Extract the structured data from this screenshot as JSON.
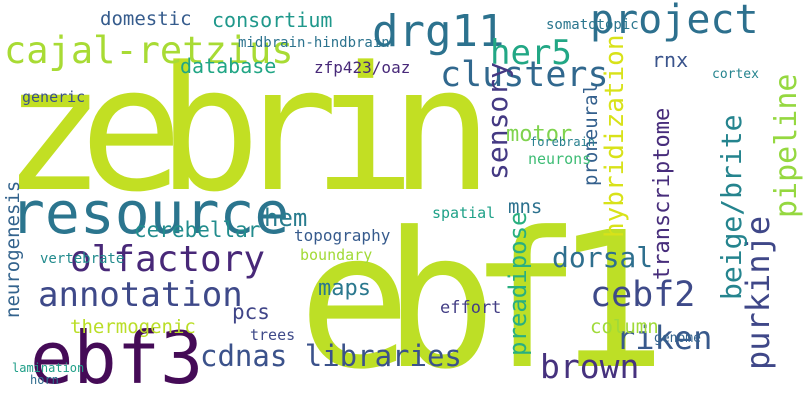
{
  "words": [
    {
      "text": "zebrin",
      "color": "#c2df23"
    },
    {
      "text": "ebf1",
      "color": "#bddf26"
    },
    {
      "text": "resource",
      "color": "#2b758e"
    },
    {
      "text": "ebf3",
      "color": "#450b57"
    },
    {
      "text": "cajal-retzius",
      "color": "#a8db34"
    },
    {
      "text": "drg11",
      "color": "#2c728e"
    },
    {
      "text": "her5",
      "color": "#22a785"
    },
    {
      "text": "project",
      "color": "#2d708e"
    },
    {
      "text": "clusters",
      "color": "#31688e"
    },
    {
      "text": "olfactory",
      "color": "#482878"
    },
    {
      "text": "annotation",
      "color": "#3e4989"
    },
    {
      "text": "cdnas libraries",
      "color": "#3b528b"
    },
    {
      "text": "brown",
      "color": "#46327e"
    },
    {
      "text": "purkinje",
      "color": "#3f4788"
    },
    {
      "text": "pipeline",
      "color": "#95d840"
    },
    {
      "text": "beige/brite",
      "color": "#25848e"
    },
    {
      "text": "cebf2",
      "color": "#3e4a89"
    },
    {
      "text": "riken",
      "color": "#38598c"
    },
    {
      "text": "dorsal",
      "color": "#2e6f8e"
    },
    {
      "text": "transcriptome",
      "color": "#472d7b"
    },
    {
      "text": "sensory",
      "color": "#443983"
    },
    {
      "text": "hybridization",
      "color": "#d8e219"
    },
    {
      "text": "preadipose",
      "color": "#29af7f"
    },
    {
      "text": "neurogenesis",
      "color": "#33638d"
    },
    {
      "text": "thermogenic",
      "color": "#bade28"
    },
    {
      "text": "consortium",
      "color": "#1f988b"
    },
    {
      "text": "domestic",
      "color": "#365c8d"
    },
    {
      "text": "midbrain-hindbrain",
      "color": "#2c738e"
    },
    {
      "text": "database",
      "color": "#21a685"
    },
    {
      "text": "hem",
      "color": "#287c8e"
    },
    {
      "text": "motor",
      "color": "#7fd34e"
    },
    {
      "text": "proneural",
      "color": "#34608d"
    },
    {
      "text": "rnx",
      "color": "#3a548c"
    },
    {
      "text": "zfp423/oaz",
      "color": "#482979"
    },
    {
      "text": "mns",
      "color": "#2c718e"
    },
    {
      "text": "cerebellar",
      "color": "#228c8d"
    },
    {
      "text": "topography",
      "color": "#375b8d"
    },
    {
      "text": "boundary",
      "color": "#a2da37"
    },
    {
      "text": "maps",
      "color": "#2a788e"
    },
    {
      "text": "pcs",
      "color": "#404588"
    },
    {
      "text": "column",
      "color": "#a0da39"
    },
    {
      "text": "vertebrate",
      "color": "#228b8d"
    },
    {
      "text": "generic",
      "color": "#3b518b"
    },
    {
      "text": "spatial",
      "color": "#1fa188"
    },
    {
      "text": "somatotopic",
      "color": "#2a768e"
    },
    {
      "text": "cortex",
      "color": "#25848e"
    },
    {
      "text": "effort",
      "color": "#433e85"
    },
    {
      "text": "neurons",
      "color": "#3dbc74"
    },
    {
      "text": "forebrain",
      "color": "#277f8e"
    },
    {
      "text": "genome",
      "color": "#33638d"
    },
    {
      "text": "trees",
      "color": "#3e4a89"
    },
    {
      "text": "lamination",
      "color": "#1f9f88"
    },
    {
      "text": "horn",
      "color": "#2f6c8e"
    }
  ]
}
